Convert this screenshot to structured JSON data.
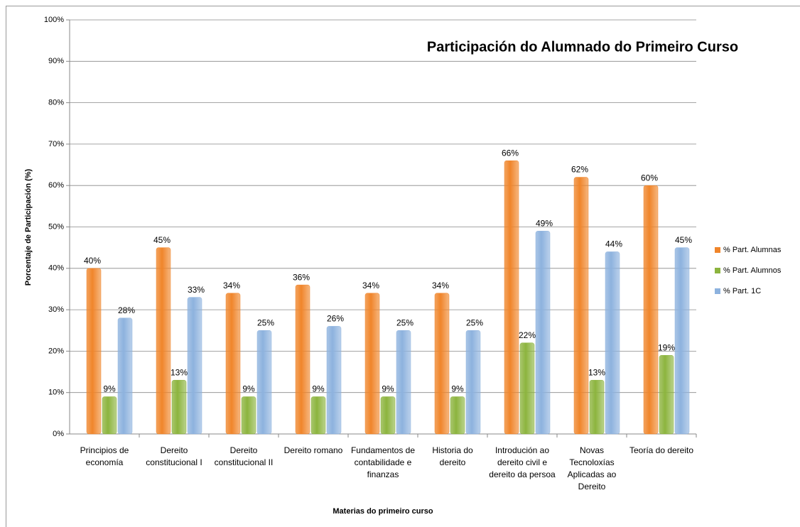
{
  "chart_data": {
    "type": "bar",
    "title": "Participación do Alumnado do Primeiro Curso",
    "x_label": "Materias do primeiro curso",
    "y_label": "Porcentaje  de Participación  (%)",
    "categories": [
      "Principios de economía",
      "Dereito constitucional I",
      "Dereito constitucional II",
      "Dereito romano",
      "Fundamentos de contabilidade e finanzas",
      "Historia do dereito",
      "Introdución ao dereito civil e dereito da persoa",
      "Novas Tecnoloxías Aplicadas ao Dereito",
      "Teoría do dereito"
    ],
    "series": [
      {
        "name": "% Part. Alumnas",
        "color": "#f0852a",
        "values": [
          40,
          45,
          34,
          36,
          34,
          34,
          66,
          62,
          60
        ],
        "value_labels": [
          "40%",
          "45%",
          "34%",
          "36%",
          "34%",
          "34%",
          "66%",
          "62%",
          "60%"
        ]
      },
      {
        "name": "% Part. Alumnos",
        "color": "#8cb43e",
        "values": [
          9,
          13,
          9,
          9,
          9,
          9,
          22,
          13,
          19
        ],
        "value_labels": [
          "9%",
          "13%",
          "9%",
          "9%",
          "9%",
          "9%",
          "22%",
          "13%",
          "19%"
        ]
      },
      {
        "name": "% Part. 1C",
        "color": "#8db2de",
        "values": [
          28,
          33,
          25,
          26,
          25,
          25,
          49,
          44,
          45
        ],
        "value_labels": [
          "28%",
          "33%",
          "25%",
          "26%",
          "25%",
          "25%",
          "49%",
          "44%",
          "45%"
        ]
      }
    ],
    "ylim": [
      0,
      100
    ],
    "yticks": [
      {
        "value": 0,
        "label": "0%"
      },
      {
        "value": 10,
        "label": "10%"
      },
      {
        "value": 20,
        "label": "20%"
      },
      {
        "value": 30,
        "label": "30%"
      },
      {
        "value": 40,
        "label": "40%"
      },
      {
        "value": 50,
        "label": "50%"
      },
      {
        "value": 60,
        "label": "60%"
      },
      {
        "value": 70,
        "label": "70%"
      },
      {
        "value": 80,
        "label": "80%"
      },
      {
        "value": 90,
        "label": "90%"
      },
      {
        "value": 100,
        "label": "100%"
      }
    ],
    "grid": true,
    "legend": "right"
  }
}
